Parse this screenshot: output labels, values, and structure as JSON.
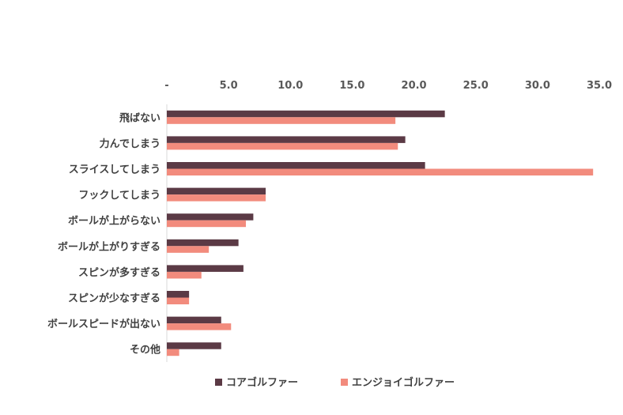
{
  "chart_data": {
    "type": "bar",
    "orientation": "horizontal",
    "categories": [
      "飛ばない",
      "力んでしまう",
      "スライスしてしまう",
      "フックしてしまう",
      "ボールが上がらない",
      "ボールが上がりすぎる",
      "スピンが多すぎる",
      "スピンが少なすぎる",
      "ボールスピードが出ない",
      "その他"
    ],
    "series": [
      {
        "name": "コアゴルファー",
        "color": "#5b3a45",
        "values": [
          22.5,
          19.3,
          20.9,
          8.0,
          7.0,
          5.8,
          6.2,
          1.8,
          4.4,
          4.4
        ]
      },
      {
        "name": "エンジョイゴルファー",
        "color": "#f28b7d",
        "values": [
          18.5,
          18.7,
          34.5,
          8.0,
          6.4,
          3.4,
          2.8,
          1.8,
          5.2,
          1.0
        ]
      }
    ],
    "xlim": [
      0,
      35
    ],
    "xticks": [
      0,
      5,
      10,
      15,
      20,
      25,
      30,
      35
    ],
    "xtick_labels": [
      "-",
      "5.0",
      "10.0",
      "15.0",
      "20.0",
      "25.0",
      "30.0",
      "35.0"
    ],
    "x_axis_position": "top",
    "legend_position": "bottom"
  }
}
